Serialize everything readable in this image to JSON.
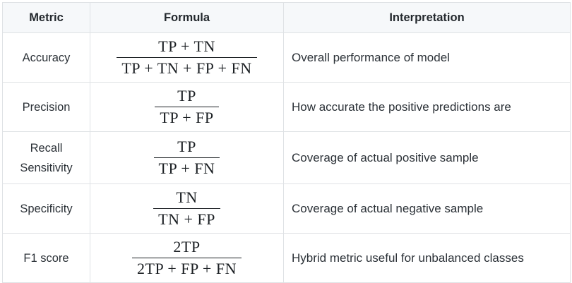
{
  "table": {
    "headers": [
      "Metric",
      "Formula",
      "Interpretation"
    ],
    "rows": [
      {
        "metric": "Accuracy",
        "formula_numerator": "TP + TN",
        "formula_denominator": "TP + TN + FP + FN",
        "interpretation": "Overall performance of model"
      },
      {
        "metric": "Precision",
        "formula_numerator": "TP",
        "formula_denominator": "TP + FP",
        "interpretation": "How accurate the positive predictions are"
      },
      {
        "metric": "Recall\nSensitivity",
        "formula_numerator": "TP",
        "formula_denominator": "TP + FN",
        "interpretation": "Coverage of actual positive sample"
      },
      {
        "metric": "Specificity",
        "formula_numerator": "TN",
        "formula_denominator": "TN + FP",
        "interpretation": "Coverage of actual negative sample"
      },
      {
        "metric": "F1 score",
        "formula_numerator": "2TP",
        "formula_denominator": "2TP + FP + FN",
        "interpretation": "Hybrid metric useful for unbalanced classes"
      }
    ],
    "colors": {
      "header_bg": "#f6f8fa",
      "border": "#dfe2e5",
      "body_text": "#2b3137",
      "header_text": "#24292e",
      "formula_text": "#1b1f23"
    }
  }
}
